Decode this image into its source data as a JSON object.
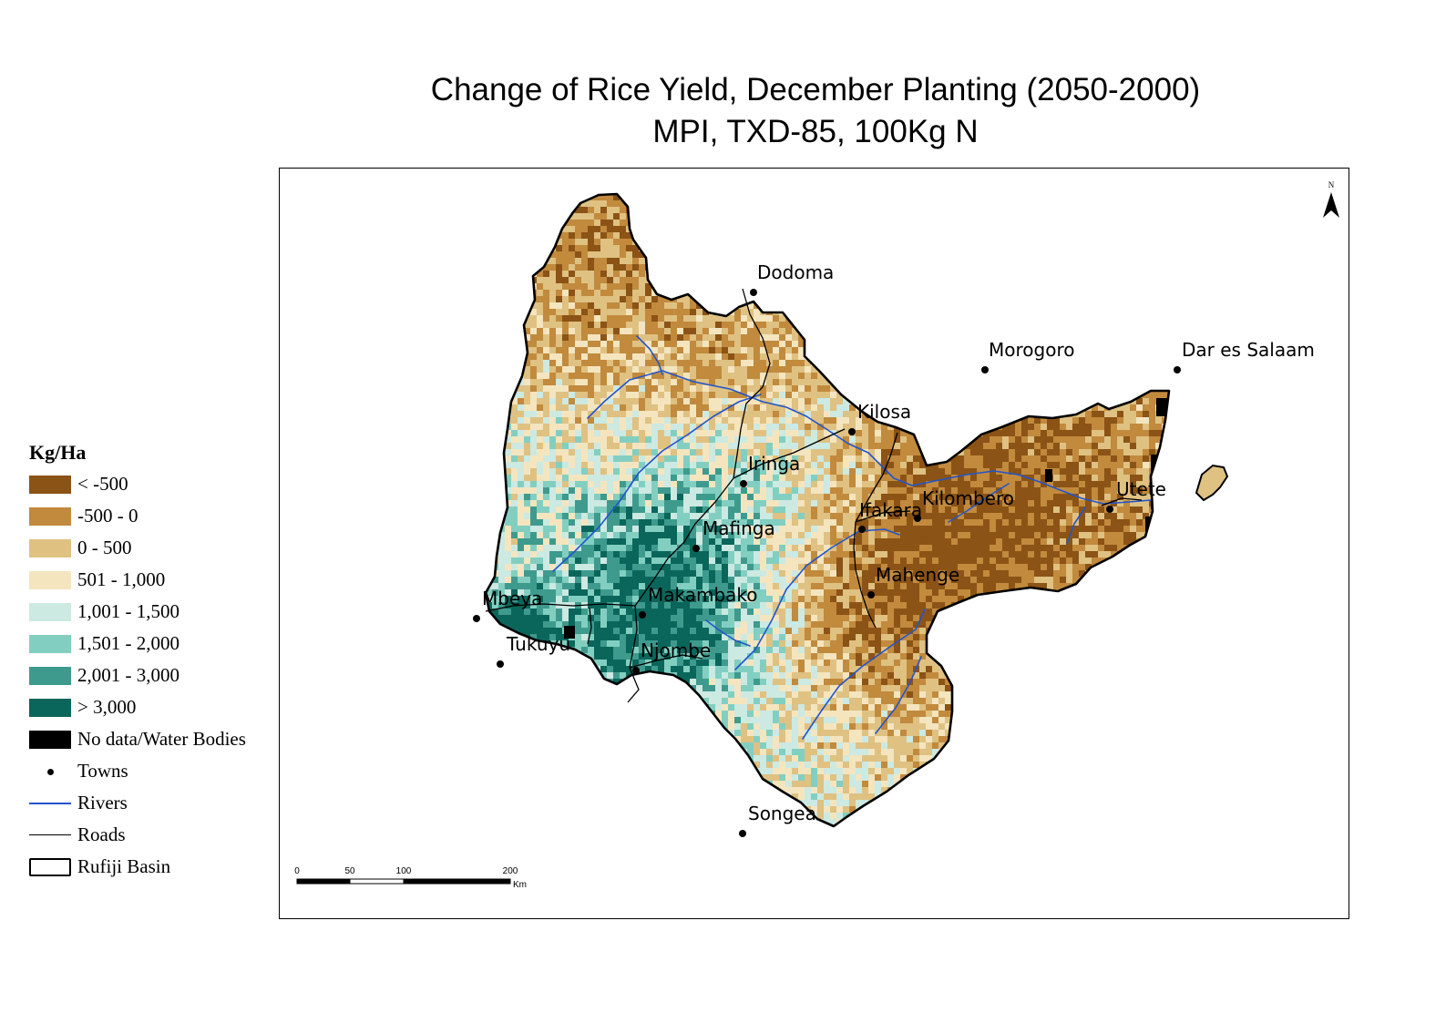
{
  "title": {
    "line1": "Change of Rice Yield, December Planting (2050-2000)",
    "line2": "MPI, TXD-85, 100Kg N"
  },
  "legend": {
    "title": "Kg/Ha",
    "classes": [
      {
        "label": "< -500",
        "color": "#8b5315"
      },
      {
        "label": "-500 - 0",
        "color": "#c18a3d"
      },
      {
        "label": "0 - 500",
        "color": "#dfc182"
      },
      {
        "label": "501 - 1,000",
        "color": "#f4e5bf"
      },
      {
        "label": "1,001 - 1,500",
        "color": "#cce9e2"
      },
      {
        "label": "1,501 - 2,000",
        "color": "#82cfc1"
      },
      {
        "label": "2,001 - 3,000",
        "color": "#3f9a8e"
      },
      {
        "label": "> 3,000",
        "color": "#0a665b"
      },
      {
        "label": "No data/Water Bodies",
        "color": "#000000"
      }
    ],
    "towns_label": "Towns",
    "rivers_label": "Rivers",
    "rivers_color": "#2255cc",
    "roads_label": "Roads",
    "basin_label": "Rufiji Basin"
  },
  "map": {
    "towns": [
      "Dodoma",
      "Morogoro",
      "Dar es Salaam",
      "Kilosa",
      "Iringa",
      "Utete",
      "Ifakara",
      "Kilombero",
      "Mafinga",
      "Mahenge",
      "Makambako",
      "Mbeya",
      "Tukuyu",
      "Njombe",
      "Songea"
    ],
    "north_arrow_label": "N",
    "scale_bar": {
      "ticks": [
        "0",
        "50",
        "100",
        "200"
      ],
      "unit": "Km"
    }
  }
}
